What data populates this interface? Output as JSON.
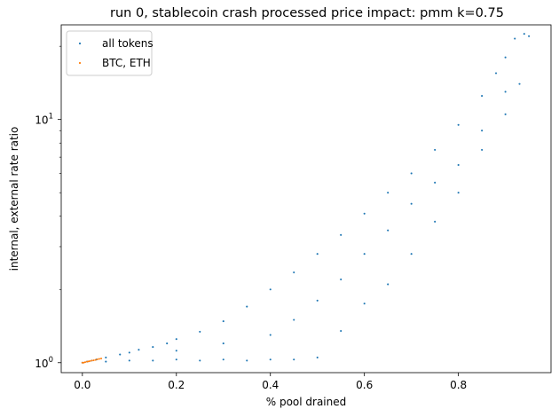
{
  "chart_data": {
    "type": "scatter",
    "title": "run 0, stablecoin crash processed price impact: pmm k=0.75",
    "xlabel": "% pool drained",
    "ylabel": "internal, external rate ratio",
    "xlim": [
      -0.045,
      0.997
    ],
    "ylim": [
      0.91,
      24.5
    ],
    "yscale": "log",
    "x_ticks": [
      0.0,
      0.2,
      0.4,
      0.6,
      0.8
    ],
    "x_tick_labels": [
      "0.0",
      "0.2",
      "0.4",
      "0.6",
      "0.8"
    ],
    "y_major_ticks": [
      1,
      10
    ],
    "y_tick_base": "10",
    "y_tick_exponents": [
      "0",
      "1"
    ],
    "legend": {
      "position": "upper-left",
      "entries": [
        "all tokens",
        "BTC, ETH"
      ]
    },
    "series": [
      {
        "name": "all tokens",
        "color": "#1f77b4",
        "points": [
          [
            0.0,
            1.0
          ],
          [
            0.01,
            1.01
          ],
          [
            0.02,
            1.02
          ],
          [
            0.03,
            1.03
          ],
          [
            0.05,
            1.05
          ],
          [
            0.08,
            1.08
          ],
          [
            0.1,
            1.1
          ],
          [
            0.12,
            1.13
          ],
          [
            0.15,
            1.16
          ],
          [
            0.18,
            1.2
          ],
          [
            0.2,
            1.25
          ],
          [
            0.25,
            1.34
          ],
          [
            0.3,
            1.48
          ],
          [
            0.35,
            1.7
          ],
          [
            0.4,
            2.0
          ],
          [
            0.45,
            2.35
          ],
          [
            0.5,
            2.8
          ],
          [
            0.55,
            3.35
          ],
          [
            0.6,
            4.1
          ],
          [
            0.65,
            5.0
          ],
          [
            0.7,
            6.0
          ],
          [
            0.75,
            7.5
          ],
          [
            0.8,
            9.5
          ],
          [
            0.85,
            12.5
          ],
          [
            0.88,
            15.5
          ],
          [
            0.9,
            18.0
          ],
          [
            0.92,
            21.5
          ],
          [
            0.94,
            22.5
          ],
          [
            0.95,
            22.0
          ],
          [
            0.05,
            1.01
          ],
          [
            0.1,
            1.02
          ],
          [
            0.15,
            1.02
          ],
          [
            0.2,
            1.03
          ],
          [
            0.25,
            1.02
          ],
          [
            0.3,
            1.03
          ],
          [
            0.35,
            1.02
          ],
          [
            0.4,
            1.03
          ],
          [
            0.45,
            1.03
          ],
          [
            0.5,
            1.05
          ],
          [
            0.55,
            1.35
          ],
          [
            0.6,
            1.75
          ],
          [
            0.65,
            2.1
          ],
          [
            0.7,
            2.8
          ],
          [
            0.75,
            3.8
          ],
          [
            0.8,
            5.0
          ],
          [
            0.85,
            7.5
          ],
          [
            0.9,
            10.5
          ],
          [
            0.93,
            14.0
          ],
          [
            0.2,
            1.12
          ],
          [
            0.3,
            1.2
          ],
          [
            0.4,
            1.3
          ],
          [
            0.45,
            1.5
          ],
          [
            0.5,
            1.8
          ],
          [
            0.55,
            2.2
          ],
          [
            0.6,
            2.8
          ],
          [
            0.65,
            3.5
          ],
          [
            0.7,
            4.5
          ],
          [
            0.75,
            5.5
          ],
          [
            0.8,
            6.5
          ],
          [
            0.85,
            9.0
          ],
          [
            0.9,
            13.0
          ]
        ]
      },
      {
        "name": "BTC, ETH",
        "color": "#ff7f0e",
        "points": [
          [
            0.0,
            1.0
          ],
          [
            0.003,
            1.0
          ],
          [
            0.006,
            1.005
          ],
          [
            0.01,
            1.01
          ],
          [
            0.013,
            1.012
          ],
          [
            0.016,
            1.015
          ],
          [
            0.02,
            1.02
          ],
          [
            0.024,
            1.023
          ],
          [
            0.028,
            1.027
          ],
          [
            0.032,
            1.032
          ],
          [
            0.036,
            1.036
          ],
          [
            0.04,
            1.04
          ]
        ]
      }
    ]
  }
}
